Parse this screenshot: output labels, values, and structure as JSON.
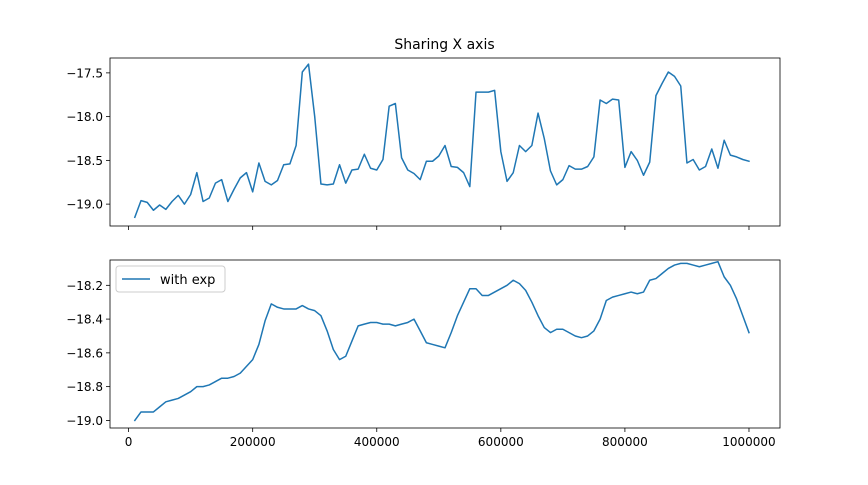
{
  "chart_data": [
    {
      "type": "line",
      "title": "Sharing X axis",
      "xlabel": "",
      "ylabel": "",
      "xlim": [
        -30000,
        1050000
      ],
      "ylim": [
        -19.25,
        -17.33
      ],
      "x_ticks_labeled": false,
      "x_ticks": [
        0,
        200000,
        400000,
        600000,
        800000,
        1000000
      ],
      "y_ticks": [
        -19.0,
        -18.5,
        -18.0,
        -17.5
      ],
      "y_tick_labels": [
        "−19.0",
        "−18.5",
        "−18.0",
        "−17.5"
      ],
      "grid": false,
      "legend": "none",
      "color": "#1f77b4",
      "series": [
        {
          "x": [
            10000,
            20000,
            30000,
            40000,
            50000,
            60000,
            70000,
            80000,
            90000,
            100000,
            110000,
            120000,
            130000,
            140000,
            150000,
            160000,
            170000,
            180000,
            190000,
            200000,
            210000,
            220000,
            230000,
            240000,
            250000,
            260000,
            270000,
            280000,
            290000,
            300000,
            310000,
            320000,
            330000,
            340000,
            350000,
            360000,
            370000,
            380000,
            390000,
            400000,
            410000,
            420000,
            430000,
            440000,
            450000,
            460000,
            470000,
            480000,
            490000,
            500000,
            510000,
            520000,
            530000,
            540000,
            550000,
            560000,
            570000,
            580000,
            590000,
            600000,
            610000,
            620000,
            630000,
            640000,
            650000,
            660000,
            670000,
            680000,
            690000,
            700000,
            710000,
            720000,
            730000,
            740000,
            750000,
            760000,
            770000,
            780000,
            790000,
            800000,
            810000,
            820000,
            830000,
            840000,
            850000,
            860000,
            870000,
            880000,
            890000,
            900000,
            910000,
            920000,
            930000,
            940000,
            950000,
            960000,
            970000,
            980000,
            990000,
            1000000
          ],
          "values": [
            -19.15,
            -18.96,
            -18.98,
            -19.07,
            -19.01,
            -19.06,
            -18.97,
            -18.9,
            -19.0,
            -18.89,
            -18.64,
            -18.97,
            -18.93,
            -18.76,
            -18.72,
            -18.97,
            -18.83,
            -18.7,
            -18.64,
            -18.86,
            -18.53,
            -18.74,
            -18.78,
            -18.73,
            -18.55,
            -18.54,
            -18.33,
            -17.49,
            -17.4,
            -18.0,
            -18.77,
            -18.78,
            -18.77,
            -18.55,
            -18.76,
            -18.61,
            -18.6,
            -18.43,
            -18.59,
            -18.61,
            -18.49,
            -17.88,
            -17.85,
            -18.47,
            -18.61,
            -18.65,
            -18.72,
            -18.51,
            -18.51,
            -18.45,
            -18.33,
            -18.57,
            -18.58,
            -18.64,
            -18.8,
            -17.72,
            -17.72,
            -17.72,
            -17.7,
            -18.4,
            -18.74,
            -18.64,
            -18.33,
            -18.4,
            -18.33,
            -17.96,
            -18.25,
            -18.62,
            -18.78,
            -18.72,
            -18.56,
            -18.6,
            -18.6,
            -18.57,
            -18.46,
            -17.81,
            -17.85,
            -17.8,
            -17.81,
            -18.58,
            -18.4,
            -18.5,
            -18.67,
            -18.52,
            -17.76,
            -17.62,
            -17.49,
            -17.54,
            -17.65,
            -18.53,
            -18.49,
            -18.61,
            -18.57,
            -18.37,
            -18.59,
            -18.27,
            -18.44,
            -18.46,
            -18.49,
            -18.51
          ]
        }
      ]
    },
    {
      "type": "line",
      "title": "",
      "xlabel": "",
      "ylabel": "",
      "xlim": [
        -30000,
        1050000
      ],
      "ylim": [
        -19.045,
        -18.05
      ],
      "x_ticks": [
        0,
        200000,
        400000,
        600000,
        800000,
        1000000
      ],
      "x_tick_labels": [
        "0",
        "200000",
        "400000",
        "600000",
        "800000",
        "1000000"
      ],
      "y_ticks": [
        -19.0,
        -18.8,
        -18.6,
        -18.4,
        -18.2
      ],
      "y_tick_labels": [
        "−19.0",
        "−18.8",
        "−18.6",
        "−18.4",
        "−18.2"
      ],
      "grid": false,
      "legend": "upper-left",
      "color": "#1f77b4",
      "series": [
        {
          "name": "with exp",
          "x": [
            10000,
            20000,
            30000,
            40000,
            50000,
            60000,
            70000,
            80000,
            90000,
            100000,
            110000,
            120000,
            130000,
            140000,
            150000,
            160000,
            170000,
            180000,
            190000,
            200000,
            210000,
            220000,
            230000,
            240000,
            250000,
            260000,
            270000,
            280000,
            290000,
            300000,
            310000,
            320000,
            330000,
            340000,
            350000,
            360000,
            370000,
            380000,
            390000,
            400000,
            410000,
            420000,
            430000,
            440000,
            450000,
            460000,
            470000,
            480000,
            490000,
            500000,
            510000,
            520000,
            530000,
            540000,
            550000,
            560000,
            570000,
            580000,
            590000,
            600000,
            610000,
            620000,
            630000,
            640000,
            650000,
            660000,
            670000,
            680000,
            690000,
            700000,
            710000,
            720000,
            730000,
            740000,
            750000,
            760000,
            770000,
            780000,
            790000,
            800000,
            810000,
            820000,
            830000,
            840000,
            850000,
            860000,
            870000,
            880000,
            890000,
            900000,
            910000,
            920000,
            930000,
            940000,
            950000,
            960000,
            970000,
            980000,
            990000,
            1000000
          ],
          "values": [
            -19.0,
            -18.95,
            -18.95,
            -18.95,
            -18.92,
            -18.89,
            -18.88,
            -18.87,
            -18.85,
            -18.83,
            -18.8,
            -18.8,
            -18.79,
            -18.77,
            -18.75,
            -18.75,
            -18.74,
            -18.72,
            -18.68,
            -18.64,
            -18.55,
            -18.41,
            -18.31,
            -18.33,
            -18.34,
            -18.34,
            -18.34,
            -18.32,
            -18.34,
            -18.35,
            -18.38,
            -18.47,
            -18.58,
            -18.64,
            -18.62,
            -18.53,
            -18.44,
            -18.43,
            -18.42,
            -18.42,
            -18.43,
            -18.43,
            -18.44,
            -18.43,
            -18.42,
            -18.4,
            -18.47,
            -18.54,
            -18.55,
            -18.56,
            -18.57,
            -18.48,
            -18.38,
            -18.3,
            -18.22,
            -18.22,
            -18.26,
            -18.26,
            -18.24,
            -18.22,
            -18.2,
            -18.17,
            -18.19,
            -18.23,
            -18.3,
            -18.38,
            -18.45,
            -18.48,
            -18.46,
            -18.46,
            -18.48,
            -18.5,
            -18.51,
            -18.5,
            -18.47,
            -18.4,
            -18.29,
            -18.27,
            -18.26,
            -18.25,
            -18.24,
            -18.25,
            -18.24,
            -18.17,
            -18.16,
            -18.13,
            -18.1,
            -18.08,
            -18.07,
            -18.07,
            -18.08,
            -18.09,
            -18.08,
            -18.07,
            -18.06,
            -18.15,
            -18.2,
            -18.28,
            -18.38,
            -18.48
          ]
        }
      ]
    }
  ]
}
